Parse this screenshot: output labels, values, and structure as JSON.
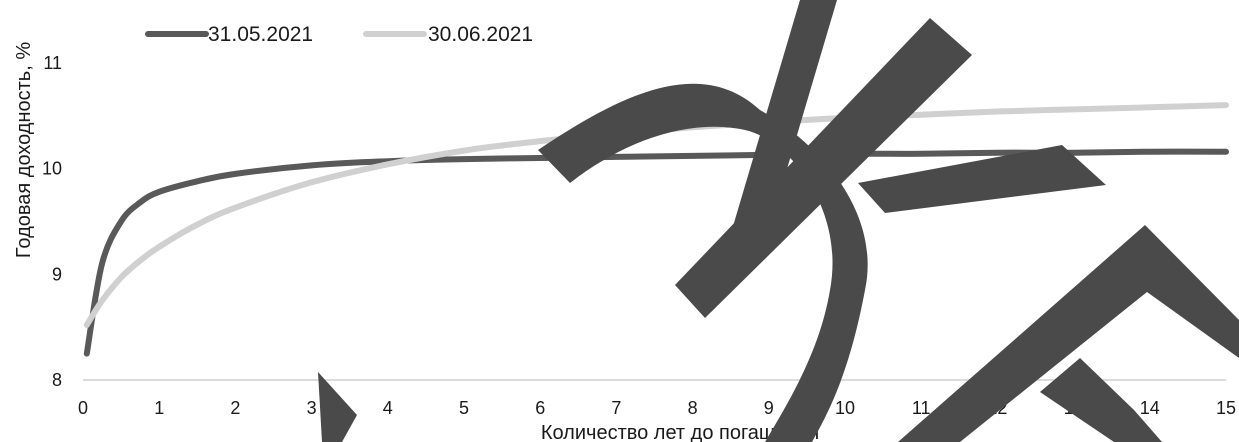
{
  "chart_data": {
    "type": "line",
    "title": "",
    "xlabel": "Количество лет до погашения",
    "ylabel": "Годовая доходность, %",
    "xlim": [
      0,
      15
    ],
    "ylim": [
      8,
      11.5
    ],
    "x_ticks": [
      "0",
      "1",
      "2",
      "3",
      "4",
      "5",
      "6",
      "7",
      "8",
      "9",
      "10",
      "11",
      "12",
      "13",
      "14",
      "15"
    ],
    "y_ticks": [
      "8",
      "9",
      "10",
      "11"
    ],
    "grid": false,
    "legend": "top-left",
    "x": [
      0.05,
      0.25,
      0.5,
      0.75,
      1,
      1.5,
      2,
      3,
      4,
      5,
      6,
      7,
      8,
      9,
      10,
      11,
      12,
      13,
      14,
      15
    ],
    "series": [
      {
        "name": "31.05.2021",
        "color": "#595959",
        "values": [
          8.25,
          9.1,
          9.5,
          9.68,
          9.78,
          9.88,
          9.95,
          10.03,
          10.07,
          10.09,
          10.1,
          10.11,
          10.12,
          10.13,
          10.14,
          10.14,
          10.15,
          10.15,
          10.16,
          10.16
        ]
      },
      {
        "name": "30.06.2021",
        "color": "#d0d0d0",
        "values": [
          8.52,
          8.75,
          8.97,
          9.13,
          9.26,
          9.47,
          9.63,
          9.87,
          10.04,
          10.17,
          10.26,
          10.33,
          10.39,
          10.44,
          10.48,
          10.51,
          10.54,
          10.56,
          10.58,
          10.6
        ]
      }
    ]
  },
  "watermark": {
    "color": "#4a4a4a",
    "glyphs": [
      "Ж",
      "Б"
    ]
  }
}
